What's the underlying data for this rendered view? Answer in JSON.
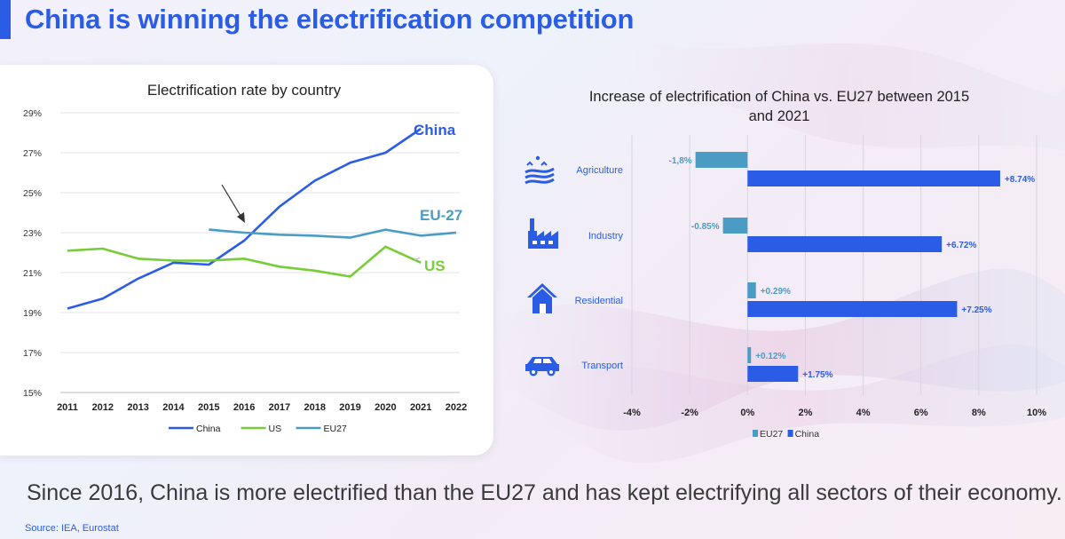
{
  "page": {
    "title": "China is winning the electrification competition",
    "caption": "Since 2016, China is more electrified than the EU27 and has kept electrifying all sectors of their economy.",
    "source": "Source: IEA, Eurostat",
    "accent_color": "#2b5ce6"
  },
  "chart_data": [
    {
      "type": "line",
      "title": "Electrification rate by country",
      "x": [
        "2011",
        "2012",
        "2013",
        "2014",
        "2015",
        "2016",
        "2017",
        "2018",
        "2019",
        "2020",
        "2021",
        "2022"
      ],
      "ylim": [
        15,
        29
      ],
      "yticks": [
        "15%",
        "17%",
        "19%",
        "21%",
        "23%",
        "25%",
        "27%",
        "29%"
      ],
      "grid": "horizontal",
      "legend_position": "bottom",
      "series": [
        {
          "name": "China",
          "color": "#2b5ce6",
          "label": "China",
          "values": [
            19.2,
            19.7,
            20.7,
            21.5,
            21.4,
            22.6,
            24.3,
            25.6,
            26.5,
            27.0,
            28.2,
            null
          ]
        },
        {
          "name": "US",
          "color": "#77cc3a",
          "label": "US",
          "values": [
            22.1,
            22.2,
            21.7,
            21.6,
            21.6,
            21.7,
            21.3,
            21.1,
            20.8,
            22.3,
            21.5,
            null
          ]
        },
        {
          "name": "EU27",
          "color": "#4a9cc4",
          "label": "EU-27",
          "values": [
            null,
            null,
            null,
            null,
            23.15,
            23.0,
            22.9,
            22.85,
            22.75,
            23.15,
            22.85,
            23.0
          ]
        }
      ],
      "annotation": {
        "type": "arrow",
        "points_to_year": "2016"
      }
    },
    {
      "type": "bar",
      "orientation": "horizontal",
      "title": "Increase of electrification of China vs. EU27 between 2015 and 2021",
      "categories": [
        "Agriculture",
        "Industry",
        "Residential",
        "Transport"
      ],
      "category_icons": [
        "agriculture-icon",
        "industry-icon",
        "residential-icon",
        "transport-icon"
      ],
      "xlim": [
        -4,
        10
      ],
      "xticks": [
        "-4%",
        "-2%",
        "0%",
        "2%",
        "4%",
        "6%",
        "8%",
        "10%"
      ],
      "grid": "vertical",
      "legend_position": "bottom",
      "series": [
        {
          "name": "EU27",
          "color": "#4a9cc4",
          "values": [
            -1.8,
            -0.85,
            0.29,
            0.12
          ],
          "labels": [
            "-1,8%",
            "-0.85%",
            "+0.29%",
            "+0.12%"
          ]
        },
        {
          "name": "China",
          "color": "#2b5ce6",
          "values": [
            8.74,
            6.72,
            7.25,
            1.75
          ],
          "labels": [
            "+8.74%",
            "+6.72%",
            "+7.25%",
            "+1.75%"
          ]
        }
      ]
    }
  ]
}
